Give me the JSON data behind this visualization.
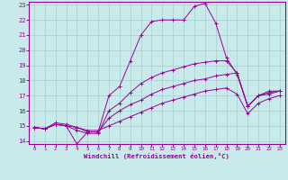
{
  "xlabel": "Windchill (Refroidissement éolien,°C)",
  "xlim": [
    -0.5,
    23.5
  ],
  "ylim": [
    13.8,
    23.2
  ],
  "yticks": [
    14,
    15,
    16,
    17,
    18,
    19,
    20,
    21,
    22,
    23
  ],
  "xticks": [
    0,
    1,
    2,
    3,
    4,
    5,
    6,
    7,
    8,
    9,
    10,
    11,
    12,
    13,
    14,
    15,
    16,
    17,
    18,
    19,
    20,
    21,
    22,
    23
  ],
  "bg_color": "#c8eaea",
  "line_color": "#990099",
  "grid_color": "#a8cece",
  "lines": [
    {
      "x": [
        0,
        1,
        2,
        3,
        4,
        5,
        6,
        7,
        8,
        9,
        10,
        11,
        12,
        13,
        14,
        15,
        16,
        17,
        18,
        19,
        20,
        21,
        22,
        23
      ],
      "y": [
        14.9,
        14.8,
        15.1,
        15.0,
        13.8,
        14.6,
        14.6,
        17.0,
        17.6,
        19.3,
        21.0,
        21.9,
        22.0,
        22.0,
        22.0,
        22.9,
        23.1,
        21.8,
        19.5,
        18.4,
        16.3,
        17.0,
        17.3,
        17.3
      ]
    },
    {
      "x": [
        0,
        1,
        2,
        3,
        4,
        5,
        6,
        7,
        8,
        9,
        10,
        11,
        12,
        13,
        14,
        15,
        16,
        17,
        18,
        19,
        20,
        21,
        22,
        23
      ],
      "y": [
        14.9,
        14.8,
        15.1,
        15.0,
        14.7,
        14.5,
        14.5,
        16.0,
        16.5,
        17.2,
        17.8,
        18.2,
        18.5,
        18.7,
        18.9,
        19.1,
        19.2,
        19.3,
        19.3,
        18.5,
        16.3,
        17.0,
        17.2,
        17.3
      ]
    },
    {
      "x": [
        0,
        1,
        2,
        3,
        4,
        5,
        6,
        7,
        8,
        9,
        10,
        11,
        12,
        13,
        14,
        15,
        16,
        17,
        18,
        19,
        20,
        21,
        22,
        23
      ],
      "y": [
        14.9,
        14.8,
        15.2,
        15.1,
        14.9,
        14.6,
        14.6,
        15.5,
        16.0,
        16.4,
        16.7,
        17.1,
        17.4,
        17.6,
        17.8,
        18.0,
        18.1,
        18.3,
        18.4,
        18.5,
        16.3,
        17.0,
        17.1,
        17.3
      ]
    },
    {
      "x": [
        0,
        1,
        2,
        3,
        4,
        5,
        6,
        7,
        8,
        9,
        10,
        11,
        12,
        13,
        14,
        15,
        16,
        17,
        18,
        19,
        20,
        21,
        22,
        23
      ],
      "y": [
        14.9,
        14.8,
        15.1,
        15.0,
        14.9,
        14.7,
        14.7,
        15.0,
        15.3,
        15.6,
        15.9,
        16.2,
        16.5,
        16.7,
        16.9,
        17.1,
        17.3,
        17.4,
        17.5,
        17.1,
        15.8,
        16.5,
        16.8,
        17.0
      ]
    }
  ]
}
